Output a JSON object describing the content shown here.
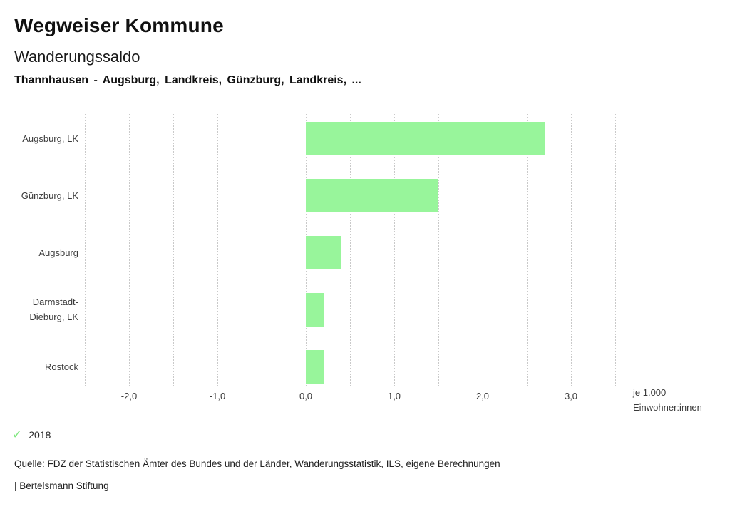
{
  "header": {
    "brand": "Wegweiser Kommune",
    "title": "Wanderungssaldo",
    "subtitle": "Thannhausen - Augsburg, Landkreis, Günzburg, Landkreis, ..."
  },
  "chart_data": {
    "type": "bar",
    "orientation": "horizontal",
    "title": "Wanderungssaldo",
    "categories": [
      "Augsburg, LK",
      "Günzburg, LK",
      "Augsburg",
      "Darmstadt-Dieburg, LK",
      "Rostock"
    ],
    "series": [
      {
        "name": "2018",
        "values": [
          2.7,
          1.5,
          0.4,
          0.2,
          0.2
        ]
      }
    ],
    "xlabel": "je 1.000 Einwohner:innen",
    "ylabel": "",
    "xlim": [
      -2.5,
      3.5
    ],
    "xticks": [
      -2,
      -1,
      0,
      1,
      2,
      3
    ],
    "xtick_labels": [
      "-2,0",
      "-1,0",
      "0,0",
      "1,0",
      "2,0",
      "3,0"
    ],
    "gridline_step": 0.5,
    "grid": true,
    "legend_position": "bottom-left",
    "bar_color": "#98f59b",
    "gridline_color": "#c9c9c9"
  },
  "axis": {
    "unit_line1": "je 1.000",
    "unit_line2": "Einwohner:innen"
  },
  "legend": {
    "check_icon": "✓",
    "label": "2018",
    "check_color": "#7de77d"
  },
  "footer": {
    "source": "Quelle: FDZ der Statistischen Ämter des Bundes und der Länder, Wanderungsstatistik, ILS, eigene Berechnungen",
    "attribution": "| Bertelsmann Stiftung"
  }
}
